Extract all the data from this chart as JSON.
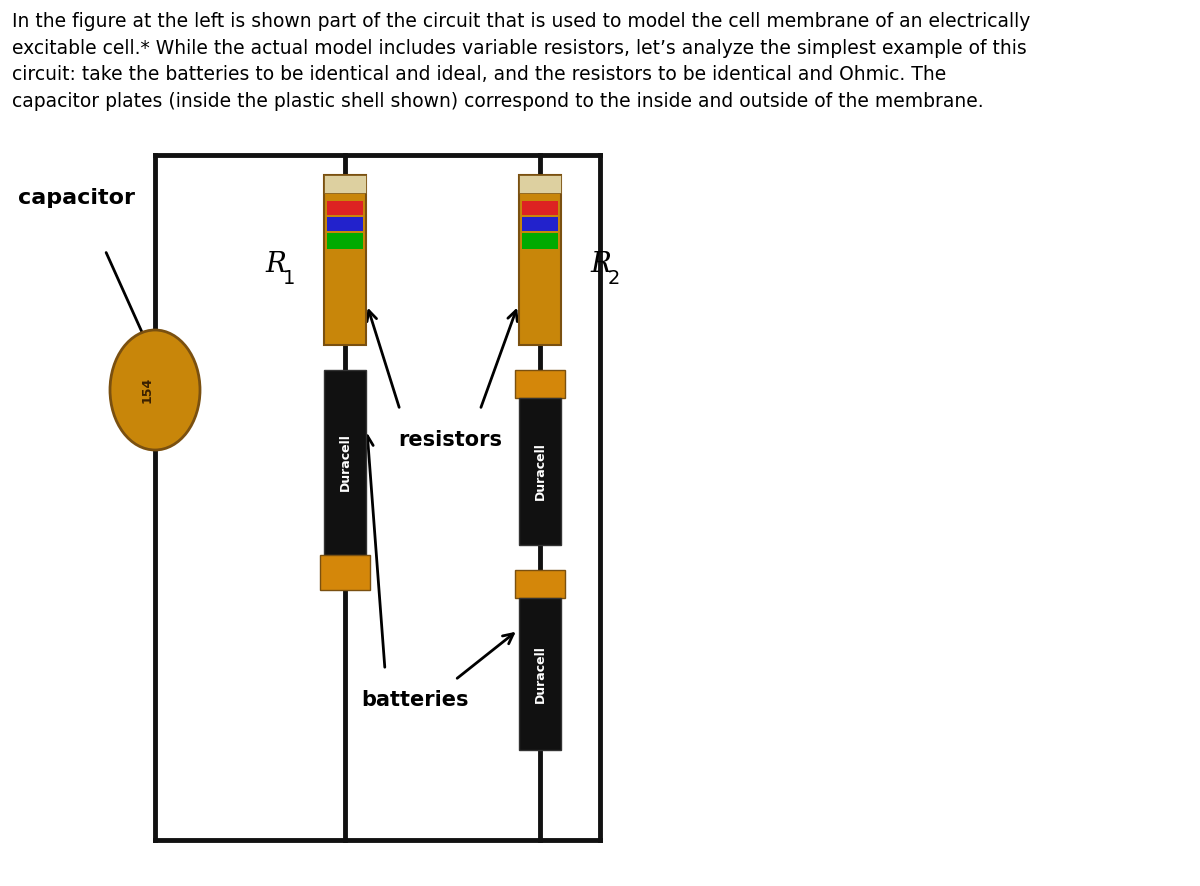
{
  "background_color": "#ffffff",
  "text_color": "#000000",
  "title_text": "In the figure at the left is shown part of the circuit that is used to model the cell membrane of an electrically\nexcitable cell.* While the actual model includes variable resistors, let’s analyze the simplest example of this\ncircuit: take the batteries to be identical and ideal, and the resistors to be identical and Ohmic. The\ncapacitor plates (inside the plastic shell shown) correspond to the inside and outside of the membrane.",
  "wire_color": "#111111",
  "resistor_body_color": "#c8860a",
  "resistor_stripe_white": "#e8d8b0",
  "resistor_stripe_red": "#dd2222",
  "resistor_stripe_blue": "#2222cc",
  "resistor_stripe_green": "#00aa00",
  "battery_black": "#111111",
  "battery_gold": "#d4870a",
  "battery_label": "Duracell",
  "capacitor_color": "#c8860a",
  "capacitor_edge": "#7a5010",
  "label_R1": "R",
  "label_R1_sub": "1",
  "label_R2": "R",
  "label_R2_sub": "2",
  "label_capacitor": "capacitor",
  "label_resistors": "resistors",
  "label_batteries": "batteries",
  "label_154": "154"
}
